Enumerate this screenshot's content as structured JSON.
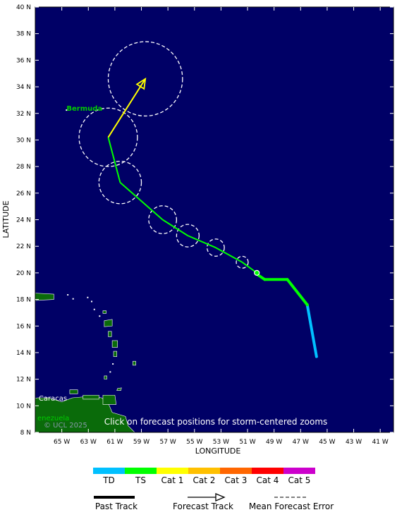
{
  "map": {
    "background_color": "#000066",
    "land_color": "#0a6b0a",
    "lon_range": [
      -67,
      -40
    ],
    "lat_range": [
      8,
      40
    ],
    "lon_ticks": [
      {
        "value": -65,
        "label": "65 W"
      },
      {
        "value": -63,
        "label": "63 W"
      },
      {
        "value": -61,
        "label": "61 W"
      },
      {
        "value": -59,
        "label": "59 W"
      },
      {
        "value": -57,
        "label": "57 W"
      },
      {
        "value": -55,
        "label": "55 W"
      },
      {
        "value": -53,
        "label": "53 W"
      },
      {
        "value": -51,
        "label": "51 W"
      },
      {
        "value": -49,
        "label": "49 W"
      },
      {
        "value": -47,
        "label": "47 W"
      },
      {
        "value": -45,
        "label": "45 W"
      },
      {
        "value": -43,
        "label": "43 W"
      },
      {
        "value": -41,
        "label": "41 W"
      }
    ],
    "lat_ticks": [
      {
        "value": 8,
        "label": "8 N"
      },
      {
        "value": 10,
        "label": "10 N"
      },
      {
        "value": 12,
        "label": "12 N"
      },
      {
        "value": 14,
        "label": "14 N"
      },
      {
        "value": 16,
        "label": "16 N"
      },
      {
        "value": 18,
        "label": "18 N"
      },
      {
        "value": 20,
        "label": "20 N"
      },
      {
        "value": 22,
        "label": "22 N"
      },
      {
        "value": 24,
        "label": "24 N"
      },
      {
        "value": 26,
        "label": "26 N"
      },
      {
        "value": 28,
        "label": "28 N"
      },
      {
        "value": 30,
        "label": "30 N"
      },
      {
        "value": 32,
        "label": "32 N"
      },
      {
        "value": 34,
        "label": "34 N"
      },
      {
        "value": 36,
        "label": "36 N"
      },
      {
        "value": 38,
        "label": "38 N"
      },
      {
        "value": 40,
        "label": "40 N"
      }
    ],
    "x_axis_title": "LONGITUDE",
    "y_axis_title": "LATITUDE",
    "place_labels": [
      {
        "name": "Bermuda",
        "lon": -64.8,
        "lat": 32.2,
        "color": "#00cc00"
      },
      {
        "name": "Caracas",
        "lon": -66.9,
        "lat": 10.4,
        "color": "#ffffff"
      },
      {
        "name": "enezuela",
        "lon": -67,
        "lat": 8.9,
        "color": "#00cc00"
      }
    ],
    "copyright": "© UCL 2025",
    "instruction": "Click on forecast positions for storm-centered zooms"
  },
  "past_track": [
    {
      "lon": -45.8,
      "lat": 13.7,
      "category": "TD"
    },
    {
      "lon": -46.5,
      "lat": 17.6,
      "category": "TD"
    },
    {
      "lon": -46.5,
      "lat": 17.6,
      "category": "TS"
    },
    {
      "lon": -48.0,
      "lat": 19.5,
      "category": "TS"
    },
    {
      "lon": -49.7,
      "lat": 19.5,
      "category": "TS"
    },
    {
      "lon": -50.3,
      "lat": 19.9,
      "category": "TS"
    }
  ],
  "current_position": {
    "lon": -50.3,
    "lat": 20.0
  },
  "forecast_track": [
    {
      "lon": -50.3,
      "lat": 20.0,
      "category": "TS",
      "error_radius_deg": 0
    },
    {
      "lon": -51.4,
      "lat": 20.8,
      "category": "TS",
      "error_radius_deg": 0.45
    },
    {
      "lon": -53.4,
      "lat": 21.9,
      "category": "TS",
      "error_radius_deg": 0.65
    },
    {
      "lon": -55.5,
      "lat": 22.8,
      "category": "TS",
      "error_radius_deg": 0.85
    },
    {
      "lon": -57.4,
      "lat": 24.0,
      "category": "TS",
      "error_radius_deg": 1.05
    },
    {
      "lon": -60.6,
      "lat": 26.8,
      "category": "TS",
      "error_radius_deg": 1.6
    },
    {
      "lon": -61.5,
      "lat": 30.2,
      "category": "TS",
      "error_radius_deg": 2.2
    },
    {
      "lon": -58.7,
      "lat": 34.6,
      "category": "Cat 1",
      "error_radius_deg": 2.8
    }
  ],
  "legend": {
    "categories": [
      {
        "label": "TD",
        "color": "#00c0ff"
      },
      {
        "label": "TS",
        "color": "#00ff00"
      },
      {
        "label": "Cat 1",
        "color": "#ffff00"
      },
      {
        "label": "Cat 2",
        "color": "#ffc000"
      },
      {
        "label": "Cat 3",
        "color": "#ff6600"
      },
      {
        "label": "Cat 4",
        "color": "#ff0000"
      },
      {
        "label": "Cat 5",
        "color": "#cc00cc"
      }
    ],
    "past_track_label": "Past Track",
    "forecast_track_label": "Forecast Track",
    "mean_error_label": "Mean Forecast Error"
  }
}
